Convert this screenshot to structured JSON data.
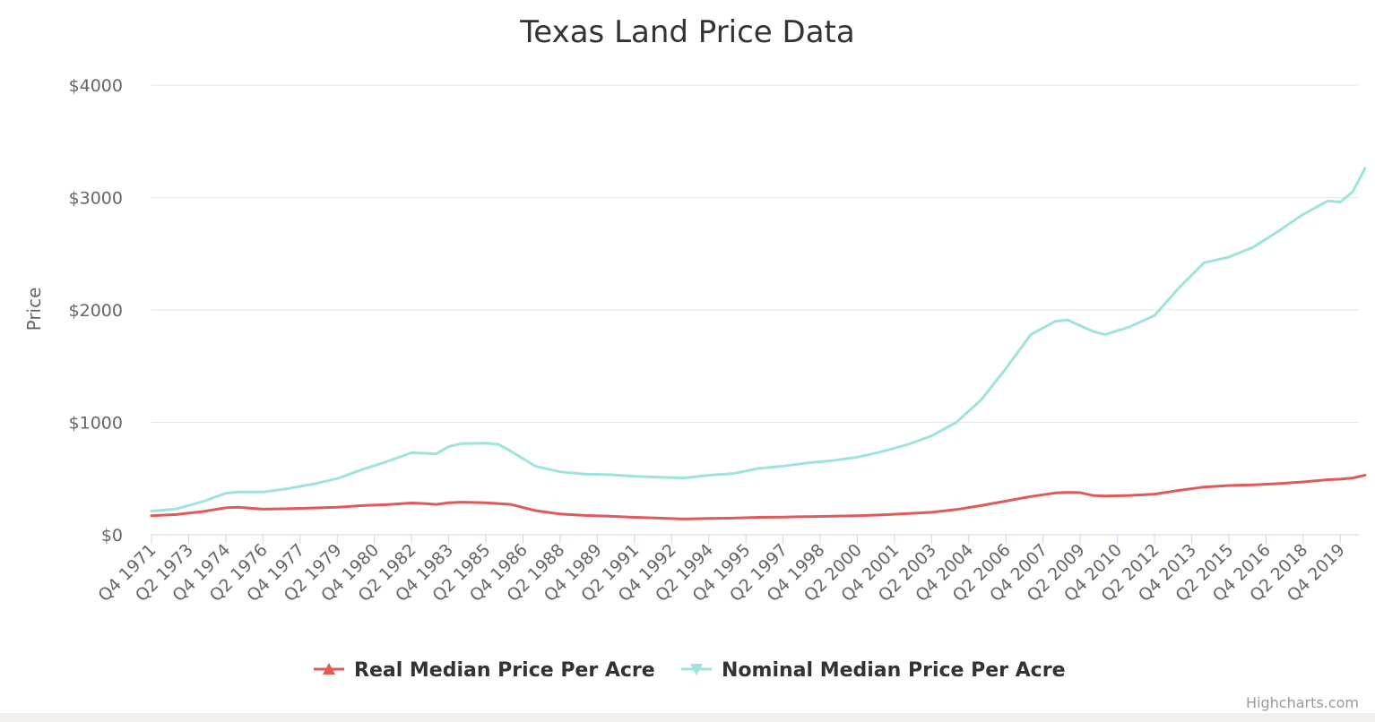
{
  "chart_data": {
    "type": "line",
    "title": "Texas Land Price Data",
    "xlabel": "",
    "ylabel": "Price",
    "ylim": [
      0,
      4000
    ],
    "y_ticks": [
      "$0",
      "$1000",
      "$2000",
      "$3000",
      "$4000"
    ],
    "y_tick_values": [
      0,
      1000,
      2000,
      3000,
      4000
    ],
    "x_tick_labels": [
      "Q4 1971",
      "Q2 1973",
      "Q4 1974",
      "Q2 1976",
      "Q4 1977",
      "Q2 1979",
      "Q4 1980",
      "Q2 1982",
      "Q4 1983",
      "Q2 1985",
      "Q4 1986",
      "Q2 1988",
      "Q4 1989",
      "Q2 1991",
      "Q4 1992",
      "Q2 1994",
      "Q4 1995",
      "Q2 1997",
      "Q4 1998",
      "Q2 2000",
      "Q4 2001",
      "Q2 2003",
      "Q4 2004",
      "Q2 2006",
      "Q4 2007",
      "Q2 2009",
      "Q4 2010",
      "Q2 2012",
      "Q4 2013",
      "Q2 2015",
      "Q4 2016",
      "Q2 2018",
      "Q4 2019"
    ],
    "x_range": [
      "Q4 1971",
      "Q2 2020"
    ],
    "grid": true,
    "legend_position": "bottom-center",
    "series": [
      {
        "name": "Real Median Price Per Acre",
        "color": "#e05a5a",
        "marker": "triangle-up",
        "points": [
          [
            "Q4 1971",
            170
          ],
          [
            "Q4 1972",
            180
          ],
          [
            "Q4 1973",
            205
          ],
          [
            "Q4 1974",
            240
          ],
          [
            "Q2 1975",
            245
          ],
          [
            "Q2 1976",
            228
          ],
          [
            "Q2 1977",
            232
          ],
          [
            "Q2 1978",
            238
          ],
          [
            "Q2 1979",
            245
          ],
          [
            "Q2 1980",
            260
          ],
          [
            "Q2 1981",
            268
          ],
          [
            "Q2 1982",
            283
          ],
          [
            "Q4 1982",
            278
          ],
          [
            "Q2 1983",
            270
          ],
          [
            "Q4 1983",
            285
          ],
          [
            "Q2 1984",
            290
          ],
          [
            "Q2 1985",
            285
          ],
          [
            "Q2 1986",
            270
          ],
          [
            "Q2 1987",
            215
          ],
          [
            "Q2 1988",
            185
          ],
          [
            "Q2 1989",
            172
          ],
          [
            "Q2 1990",
            165
          ],
          [
            "Q2 1991",
            155
          ],
          [
            "Q2 1992",
            148
          ],
          [
            "Q2 1993",
            140
          ],
          [
            "Q2 1994",
            145
          ],
          [
            "Q2 1995",
            148
          ],
          [
            "Q2 1996",
            155
          ],
          [
            "Q2 1997",
            158
          ],
          [
            "Q2 1998",
            162
          ],
          [
            "Q2 1999",
            165
          ],
          [
            "Q2 2000",
            170
          ],
          [
            "Q2 2001",
            178
          ],
          [
            "Q2 2002",
            188
          ],
          [
            "Q2 2003",
            200
          ],
          [
            "Q2 2004",
            225
          ],
          [
            "Q2 2005",
            260
          ],
          [
            "Q2 2006",
            300
          ],
          [
            "Q2 2007",
            340
          ],
          [
            "Q2 2008",
            372
          ],
          [
            "Q4 2008",
            378
          ],
          [
            "Q2 2009",
            375
          ],
          [
            "Q4 2009",
            350
          ],
          [
            "Q2 2010",
            345
          ],
          [
            "Q2 2011",
            350
          ],
          [
            "Q2 2012",
            362
          ],
          [
            "Q2 2013",
            395
          ],
          [
            "Q2 2014",
            425
          ],
          [
            "Q2 2015",
            438
          ],
          [
            "Q2 2016",
            445
          ],
          [
            "Q2 2017",
            455
          ],
          [
            "Q2 2018",
            470
          ],
          [
            "Q2 2019",
            490
          ],
          [
            "Q4 2019",
            495
          ],
          [
            "Q2 2020",
            505
          ],
          [
            "Q4 2020",
            530
          ]
        ]
      },
      {
        "name": "Nominal Median Price Per Acre",
        "color": "#9ee3dd",
        "marker": "triangle-down",
        "points": [
          [
            "Q4 1971",
            210
          ],
          [
            "Q4 1972",
            230
          ],
          [
            "Q4 1973",
            290
          ],
          [
            "Q4 1974",
            370
          ],
          [
            "Q2 1975",
            380
          ],
          [
            "Q2 1976",
            380
          ],
          [
            "Q2 1977",
            410
          ],
          [
            "Q2 1978",
            450
          ],
          [
            "Q2 1979",
            500
          ],
          [
            "Q2 1980",
            580
          ],
          [
            "Q2 1981",
            650
          ],
          [
            "Q2 1982",
            730
          ],
          [
            "Q4 1982",
            725
          ],
          [
            "Q2 1983",
            720
          ],
          [
            "Q4 1983",
            785
          ],
          [
            "Q2 1984",
            810
          ],
          [
            "Q2 1985",
            815
          ],
          [
            "Q4 1985",
            805
          ],
          [
            "Q2 1986",
            745
          ],
          [
            "Q2 1987",
            610
          ],
          [
            "Q2 1988",
            560
          ],
          [
            "Q2 1989",
            540
          ],
          [
            "Q2 1990",
            535
          ],
          [
            "Q2 1991",
            520
          ],
          [
            "Q2 1992",
            512
          ],
          [
            "Q2 1993",
            505
          ],
          [
            "Q2 1994",
            530
          ],
          [
            "Q2 1995",
            545
          ],
          [
            "Q2 1996",
            590
          ],
          [
            "Q2 1997",
            610
          ],
          [
            "Q2 1998",
            640
          ],
          [
            "Q2 1999",
            660
          ],
          [
            "Q2 2000",
            690
          ],
          [
            "Q2 2001",
            740
          ],
          [
            "Q2 2002",
            800
          ],
          [
            "Q2 2003",
            880
          ],
          [
            "Q2 2004",
            1000
          ],
          [
            "Q2 2005",
            1200
          ],
          [
            "Q2 2006",
            1480
          ],
          [
            "Q2 2007",
            1780
          ],
          [
            "Q2 2008",
            1900
          ],
          [
            "Q4 2008",
            1910
          ],
          [
            "Q2 2009",
            1860
          ],
          [
            "Q4 2009",
            1810
          ],
          [
            "Q2 2010",
            1780
          ],
          [
            "Q2 2011",
            1850
          ],
          [
            "Q2 2012",
            1950
          ],
          [
            "Q2 2013",
            2200
          ],
          [
            "Q2 2014",
            2420
          ],
          [
            "Q2 2015",
            2470
          ],
          [
            "Q2 2016",
            2560
          ],
          [
            "Q2 2017",
            2700
          ],
          [
            "Q2 2018",
            2850
          ],
          [
            "Q2 2019",
            2970
          ],
          [
            "Q4 2019",
            2960
          ],
          [
            "Q2 2020",
            3050
          ],
          [
            "Q4 2020",
            3260
          ]
        ]
      }
    ]
  },
  "credits": "Highcharts.com"
}
